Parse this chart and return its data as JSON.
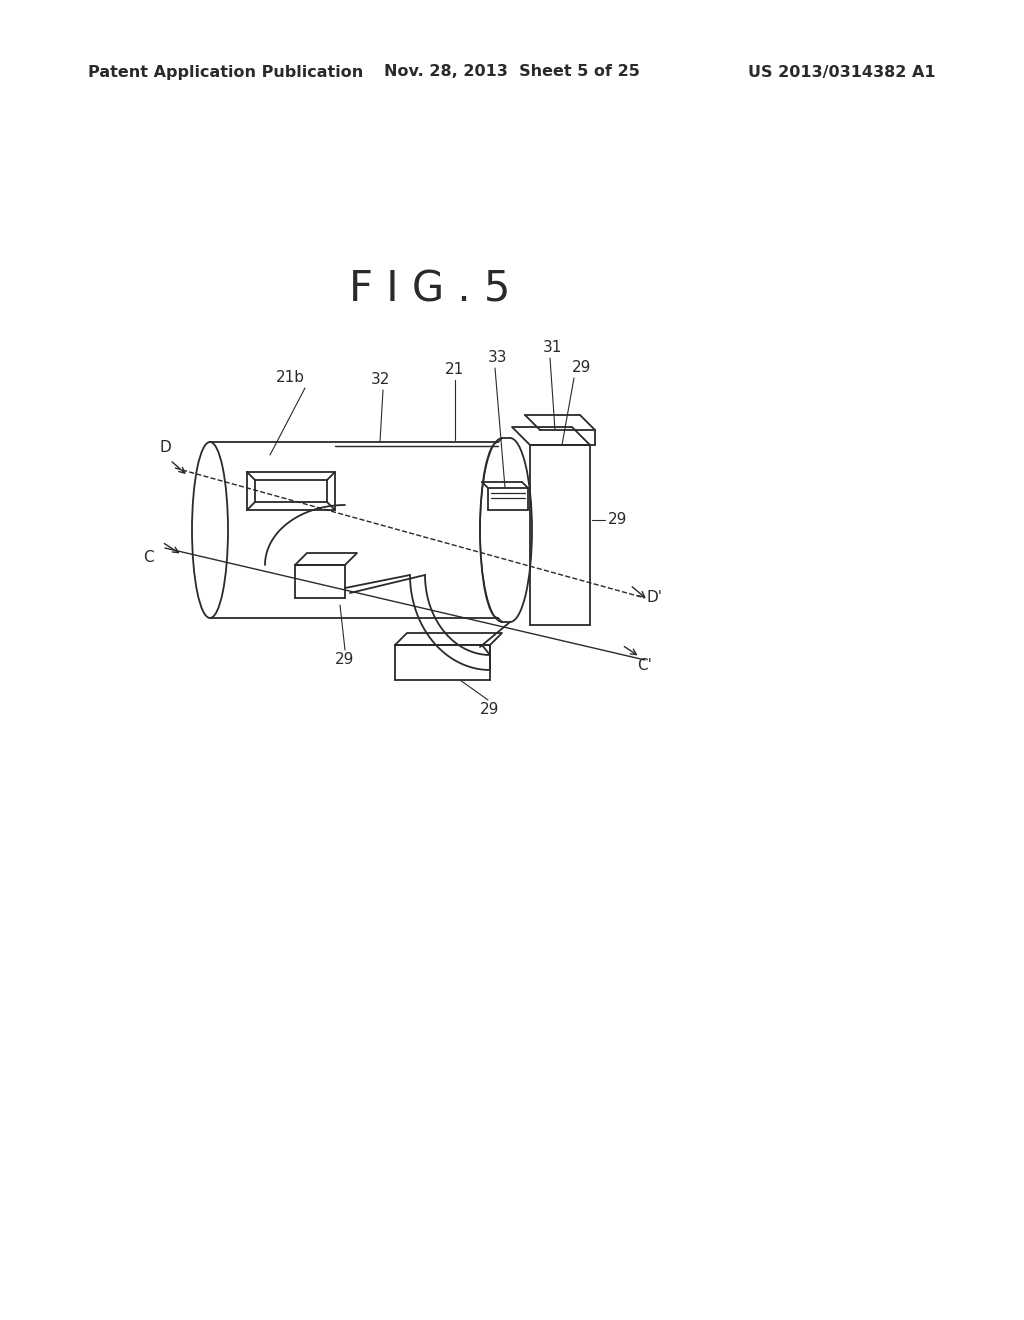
{
  "bg_color": "#ffffff",
  "line_color": "#2a2a2a",
  "fig_label": "F I G . 5",
  "fig_label_fontsize": 30,
  "header_left": "Patent Application Publication",
  "header_center": "Nov. 28, 2013  Sheet 5 of 25",
  "header_right": "US 2013/0314382 A1",
  "header_fontsize": 11.5,
  "label_fontsize": 11,
  "lw": 1.3
}
